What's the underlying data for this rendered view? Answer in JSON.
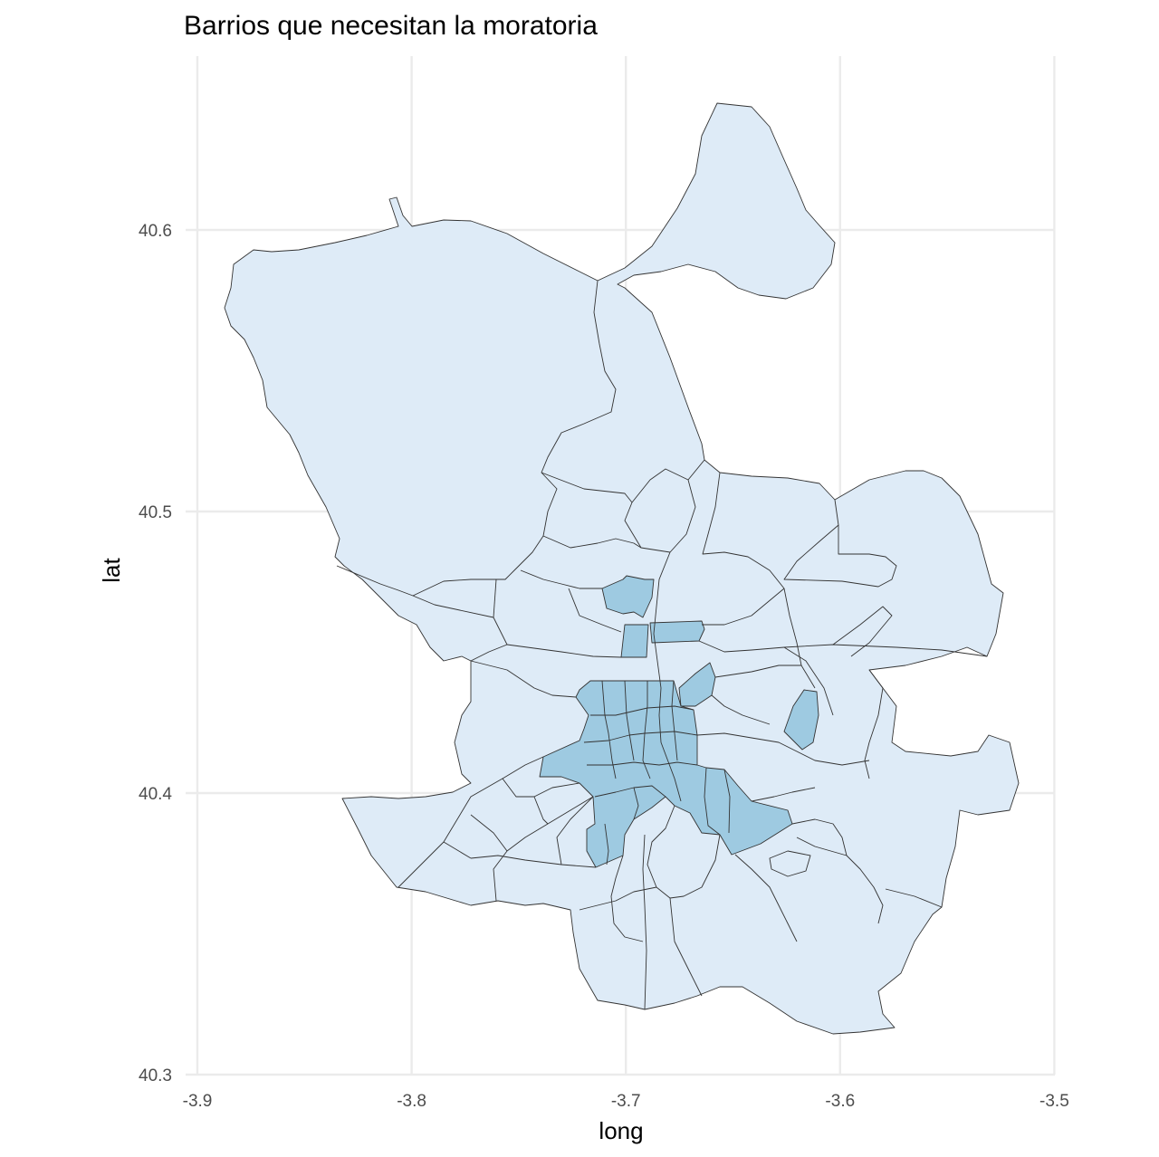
{
  "chart_data": {
    "type": "map",
    "title": "Barrios que necesitan la moratoria",
    "xlabel": "long",
    "ylabel": "lat",
    "xlim": [
      -3.9,
      -3.5
    ],
    "ylim": [
      40.3,
      40.65
    ],
    "x_ticks": [
      "-3.9",
      "-3.8",
      "-3.7",
      "-3.6",
      "-3.5"
    ],
    "x_tick_values": [
      -3.9,
      -3.8,
      -3.7,
      -3.6,
      -3.5
    ],
    "y_ticks": [
      "40.3",
      "40.4",
      "40.5",
      "40.6"
    ],
    "y_tick_values": [
      40.3,
      40.4,
      40.5,
      40.6
    ],
    "grid": true,
    "legend": "none",
    "colors": {
      "base_fill": "#deebf7",
      "highlight_fill": "#9ecae1",
      "border": "#333333",
      "grid": "#ebebeb"
    }
  }
}
